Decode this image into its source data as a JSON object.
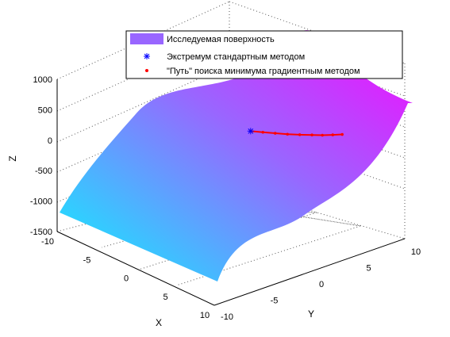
{
  "chart_data": {
    "type": "surface",
    "xlabel": "X",
    "ylabel": "Y",
    "zlabel": "Z",
    "xlim": [
      -10,
      10
    ],
    "ylim": [
      -10,
      10
    ],
    "zlim": [
      -1500,
      1000
    ],
    "x_ticks": [
      "-10",
      "-5",
      "0",
      "5",
      "10"
    ],
    "y_ticks": [
      "-10",
      "-5",
      "0",
      "5",
      "10"
    ],
    "z_ticks": [
      "1000",
      "500",
      "0",
      "-500",
      "-1000",
      "-1500"
    ],
    "grid": true,
    "legend_position": "top",
    "colors": {
      "colormap_low": "#00ffff",
      "colormap_high": "#ff00ff",
      "extremum_marker": "#0000ff",
      "path_marker": "#ff0000"
    },
    "legend": [
      {
        "label": "Исследуемая поверхность",
        "marker": "patch",
        "color": "#9966ff"
      },
      {
        "label": "Экстремум стандартным методом",
        "marker": "asterisk",
        "color": "#0000ff"
      },
      {
        "label": "\"Путь\" поиска минимума градиентным методом",
        "marker": "dot",
        "color": "#ff0000"
      }
    ],
    "series": [
      {
        "name": "Исследуемая поверхность",
        "kind": "surface",
        "corner_values": {
          "x-10_y-10": -1200,
          "x10_y-10": -450,
          "x-10_y10": 750,
          "x10_y10": 650
        }
      },
      {
        "name": "Экстремум стандартным методом",
        "kind": "point",
        "x": -1,
        "y": 3,
        "z": 0
      },
      {
        "name": "\"Путь\" поиска минимума градиентным методом",
        "kind": "path",
        "points": [
          [
            -1.0,
            3.0,
            0
          ],
          [
            -0.4,
            3.8,
            -25
          ],
          [
            0.2,
            4.6,
            -48
          ],
          [
            0.8,
            5.4,
            -70
          ],
          [
            1.4,
            6.2,
            -85
          ],
          [
            2.0,
            7.0,
            -95
          ],
          [
            2.6,
            7.6,
            -95
          ],
          [
            3.2,
            8.2,
            -85
          ],
          [
            3.8,
            8.7,
            -68
          ]
        ]
      }
    ]
  }
}
